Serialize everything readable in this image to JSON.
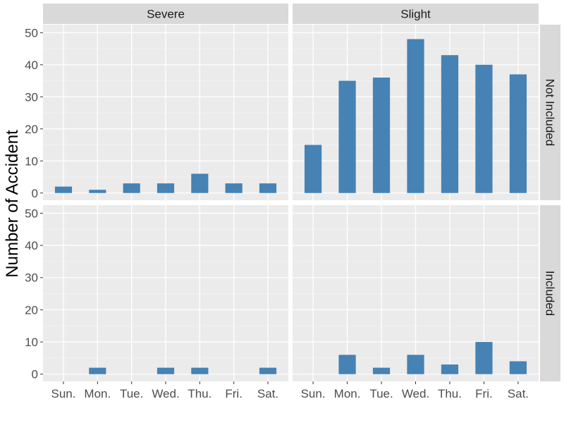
{
  "colors": {
    "bar": "#4682b4",
    "panel_bg": "#ebebeb",
    "strip_bg": "#d9d9d9",
    "grid_major": "#ffffff",
    "grid_minor": "#f3f3f3",
    "tick_text": "#4d4d4d",
    "strip_text": "#1a1a1a"
  },
  "chart_data": {
    "type": "bar",
    "facet": "grid",
    "title": "",
    "xlabel": "",
    "ylabel": "Number of Accident",
    "ylim": [
      0,
      50
    ],
    "yticks": [
      0,
      10,
      20,
      30,
      40,
      50
    ],
    "grid": true,
    "categories": [
      "Sun.",
      "Mon.",
      "Tue.",
      "Wed.",
      "Thu.",
      "Fri.",
      "Sat."
    ],
    "column_facets": [
      "Severe",
      "Slight"
    ],
    "row_facets": [
      "Not Included",
      "Included"
    ],
    "panels": [
      {
        "col": "Severe",
        "row": "Not Included",
        "values": [
          2,
          1,
          3,
          3,
          6,
          3,
          3
        ]
      },
      {
        "col": "Slight",
        "row": "Not Included",
        "values": [
          15,
          35,
          36,
          48,
          43,
          40,
          37
        ]
      },
      {
        "col": "Severe",
        "row": "Included",
        "values": [
          0,
          2,
          0,
          2,
          2,
          0,
          2
        ]
      },
      {
        "col": "Slight",
        "row": "Included",
        "values": [
          0,
          6,
          2,
          6,
          3,
          10,
          4
        ]
      }
    ]
  }
}
